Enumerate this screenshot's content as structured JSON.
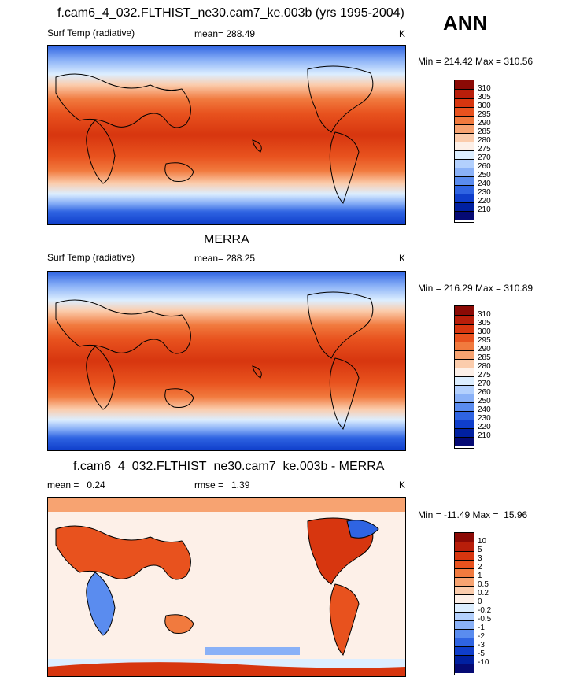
{
  "season_label": "ANN",
  "panels": [
    {
      "title": "f.cam6_4_032.FLTHIST_ne30.cam7_ke.003b (yrs 1995-2004)",
      "left_label": "Surf Temp (radiative)",
      "center_label": "mean= 288.49",
      "units": "K",
      "minmax": "Min = 214.42 Max = 310.56",
      "colorbar": {
        "levels": [
          "310",
          "305",
          "300",
          "295",
          "290",
          "285",
          "280",
          "275",
          "270",
          "260",
          "250",
          "240",
          "230",
          "220",
          "210"
        ],
        "colors": [
          "#8b0a05",
          "#b81e0a",
          "#d7360f",
          "#e8521e",
          "#f17a3e",
          "#f7a371",
          "#fbccac",
          "#fdf0e8",
          "#dceeff",
          "#b3d0fd",
          "#8ab1f7",
          "#5a8cef",
          "#2f64e2",
          "#0f3ecb",
          "#0020a0",
          "#050a74"
        ]
      }
    },
    {
      "title": "MERRA",
      "left_label": "Surf Temp (radiative)",
      "center_label": "mean= 288.25",
      "units": "K",
      "minmax": "Min = 216.29 Max = 310.89",
      "colorbar": {
        "levels": [
          "310",
          "305",
          "300",
          "295",
          "290",
          "285",
          "280",
          "275",
          "270",
          "260",
          "250",
          "240",
          "230",
          "220",
          "210"
        ],
        "colors": [
          "#8b0a05",
          "#b81e0a",
          "#d7360f",
          "#e8521e",
          "#f17a3e",
          "#f7a371",
          "#fbccac",
          "#fdf0e8",
          "#dceeff",
          "#b3d0fd",
          "#8ab1f7",
          "#5a8cef",
          "#2f64e2",
          "#0f3ecb",
          "#0020a0",
          "#050a74"
        ]
      }
    },
    {
      "title": "f.cam6_4_032.FLTHIST_ne30.cam7_ke.003b - MERRA",
      "left_label": "mean =   0.24",
      "center_label": "rmse =   1.39",
      "units": "K",
      "minmax": "Min = -11.49 Max =  15.96",
      "colorbar": {
        "levels": [
          "10",
          "5",
          "3",
          "2",
          "1",
          "0.5",
          "0.2",
          "0",
          "-0.2",
          "-0.5",
          "-1",
          "-2",
          "-3",
          "-5",
          "-10"
        ],
        "colors": [
          "#8b0a05",
          "#b81e0a",
          "#d7360f",
          "#e8521e",
          "#f17a3e",
          "#f7a371",
          "#fbccac",
          "#fdf0e8",
          "#dceeff",
          "#b3d0fd",
          "#8ab1f7",
          "#5a8cef",
          "#2f64e2",
          "#0f3ecb",
          "#0020a0",
          "#050a74"
        ]
      }
    }
  ]
}
